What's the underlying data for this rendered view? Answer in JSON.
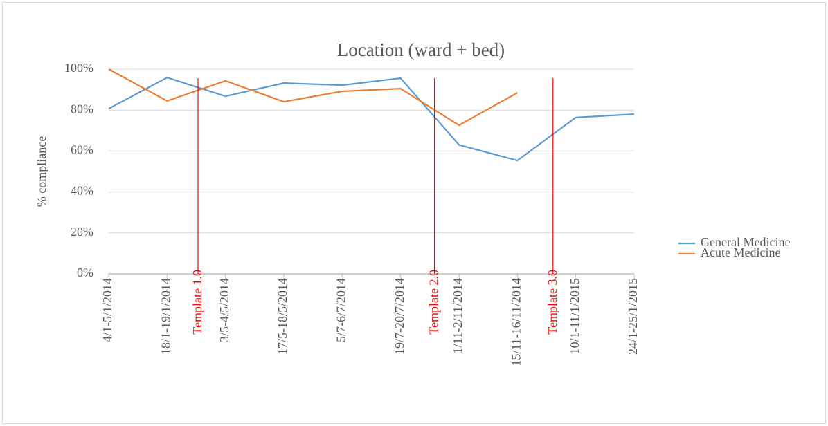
{
  "chart_data": {
    "type": "line",
    "title": "Location (ward + bed)",
    "y_label": "% compliance",
    "categories": [
      "4/1-5/1/2014",
      "18/1-19/1/2014",
      "3/5-4/5/2014",
      "17/5-18/5/2014",
      "5/7-6/7/2014",
      "19/7-20/7/2014",
      "1/11-2/11/2014",
      "15/11-16/11/2014",
      "10/1-11/1/2015",
      "24/1-25/1/2015"
    ],
    "series": [
      {
        "name": "General Medicine",
        "color": "#5b9bd5",
        "values": [
          80.7,
          95.9,
          86.8,
          93.2,
          92.2,
          95.6,
          63,
          55.4,
          76.4,
          78
        ]
      },
      {
        "name": "Acute Medicine",
        "color": "#ed7d31",
        "values": [
          100,
          84.5,
          94.3,
          84.1,
          89.2,
          90.5,
          72.6,
          88.5,
          null,
          null
        ]
      }
    ],
    "ylim": [
      0,
      100
    ],
    "yticks": [
      {
        "value": 0,
        "label": "0%"
      },
      {
        "value": 20,
        "label": "20%"
      },
      {
        "value": 40,
        "label": "40%"
      },
      {
        "value": 60,
        "label": "60%"
      },
      {
        "value": 80,
        "label": "80%"
      },
      {
        "value": 100,
        "label": "100%"
      }
    ],
    "grid": true,
    "legend": "right",
    "annotations": [
      {
        "label": "Template 1.0",
        "x": 1.53,
        "color": "#ff0000"
      },
      {
        "label": "Template 2.0",
        "x": 5.58,
        "color": "#ff0000"
      },
      {
        "label": "Template 3.0",
        "x": 7.61,
        "color": "#ff0000"
      }
    ]
  }
}
